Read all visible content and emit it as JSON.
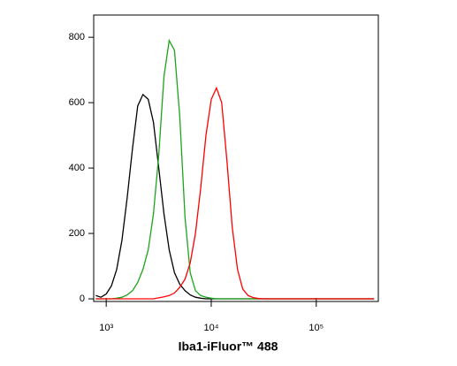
{
  "chart_data": {
    "type": "line",
    "x_label": "Iba1-iFluor™ 488",
    "xscale": "log",
    "xlim": [
      760,
      390000
    ],
    "xticks": [
      {
        "value": 1000,
        "label": "10³"
      },
      {
        "value": 10000,
        "label": "10⁴"
      },
      {
        "value": 100000,
        "label": "10⁵"
      }
    ],
    "ylim": [
      -8,
      868
    ],
    "yticks": [
      0,
      200,
      400,
      600,
      800
    ],
    "x": [
      794,
      891,
      1000,
      1122,
      1259,
      1413,
      1585,
      1778,
      1995,
      2239,
      2512,
      2818,
      3162,
      3548,
      3981,
      4467,
      5012,
      5623,
      6310,
      7079,
      7943,
      8913,
      10000,
      11220,
      12589,
      14125,
      15849,
      17783,
      19953,
      22387,
      25119,
      28184,
      31623,
      50119,
      100000,
      199526,
      354813
    ],
    "series": [
      {
        "color": "#000000",
        "values": [
          10,
          5,
          15,
          40,
          90,
          180,
          310,
          460,
          590,
          625,
          610,
          540,
          400,
          260,
          150,
          80,
          45,
          25,
          12,
          5,
          2,
          0,
          0,
          0,
          0,
          0,
          0,
          0,
          0,
          0,
          0,
          0,
          0,
          0,
          0,
          0,
          0
        ]
      },
      {
        "color": "#1aa51a",
        "values": [
          0,
          0,
          0,
          0,
          2,
          5,
          12,
          25,
          50,
          90,
          150,
          260,
          440,
          680,
          790,
          760,
          560,
          250,
          80,
          25,
          10,
          5,
          2,
          0,
          0,
          0,
          0,
          0,
          0,
          0,
          0,
          0,
          0,
          0,
          0,
          0,
          0
        ]
      },
      {
        "color": "#ff0000",
        "values": [
          0,
          0,
          0,
          0,
          0,
          0,
          0,
          0,
          0,
          0,
          0,
          0,
          3,
          6,
          10,
          18,
          35,
          60,
          110,
          200,
          340,
          500,
          610,
          645,
          600,
          420,
          220,
          90,
          30,
          10,
          4,
          1,
          0,
          0,
          0,
          0,
          0
        ]
      }
    ]
  }
}
